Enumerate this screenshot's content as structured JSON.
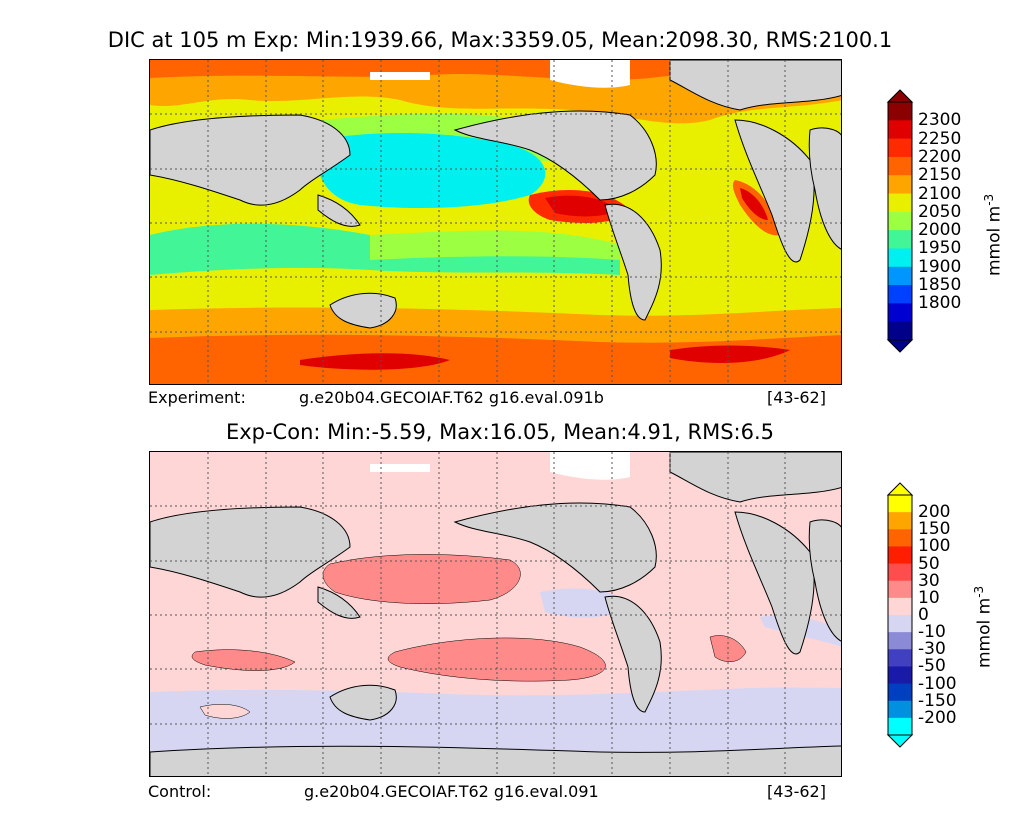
{
  "top_panel": {
    "title": "DIC at 105 m Exp: Min:1939.66, Max:3359.05, Mean:2098.30, RMS:2100.1",
    "caption_label": "Experiment:",
    "caption_case": "g.e20b04.GECOIAF.T62 g16.eval.091b",
    "caption_years": "[43-62]",
    "unit_base": "mmol m",
    "unit_exp": "-3",
    "colorbar_ticks": [
      "2300",
      "2250",
      "2200",
      "2150",
      "2100",
      "2050",
      "2000",
      "1950",
      "1900",
      "1850",
      "1800"
    ],
    "colorbar_colors": [
      "#8b0000",
      "#e00000",
      "#ff2a00",
      "#ff6400",
      "#ffa500",
      "#e8f000",
      "#9dff42",
      "#42f596",
      "#00f0f0",
      "#0096ff",
      "#0040ff",
      "#0000d0",
      "#00008b"
    ]
  },
  "bottom_panel": {
    "title": "Exp-Con: Min:-5.59, Max:16.05, Mean:4.91, RMS:6.5",
    "caption_label": "Control:",
    "caption_case": "g.e20b04.GECOIAF.T62 g16.eval.091",
    "caption_years": "[43-62]",
    "unit_base": "mmol m",
    "unit_exp": "-3",
    "colorbar_ticks": [
      "200",
      "150",
      "100",
      "50",
      "30",
      "10",
      "0",
      "-10",
      "-30",
      "-50",
      "-100",
      "-150",
      "-200"
    ],
    "colorbar_colors": [
      "#ffff00",
      "#ffa500",
      "#ff6400",
      "#ff1e00",
      "#ff4d4d",
      "#ff8a8a",
      "#ffd6d6",
      "#d6d6f2",
      "#8a8ad6",
      "#4040c0",
      "#1a1aa8",
      "#0040c0",
      "#0090e0",
      "#00ffff"
    ]
  },
  "colors": {
    "land": "#d3d3d3",
    "ice": "#ffffff",
    "coast": "#000000",
    "grid": "#555555"
  }
}
